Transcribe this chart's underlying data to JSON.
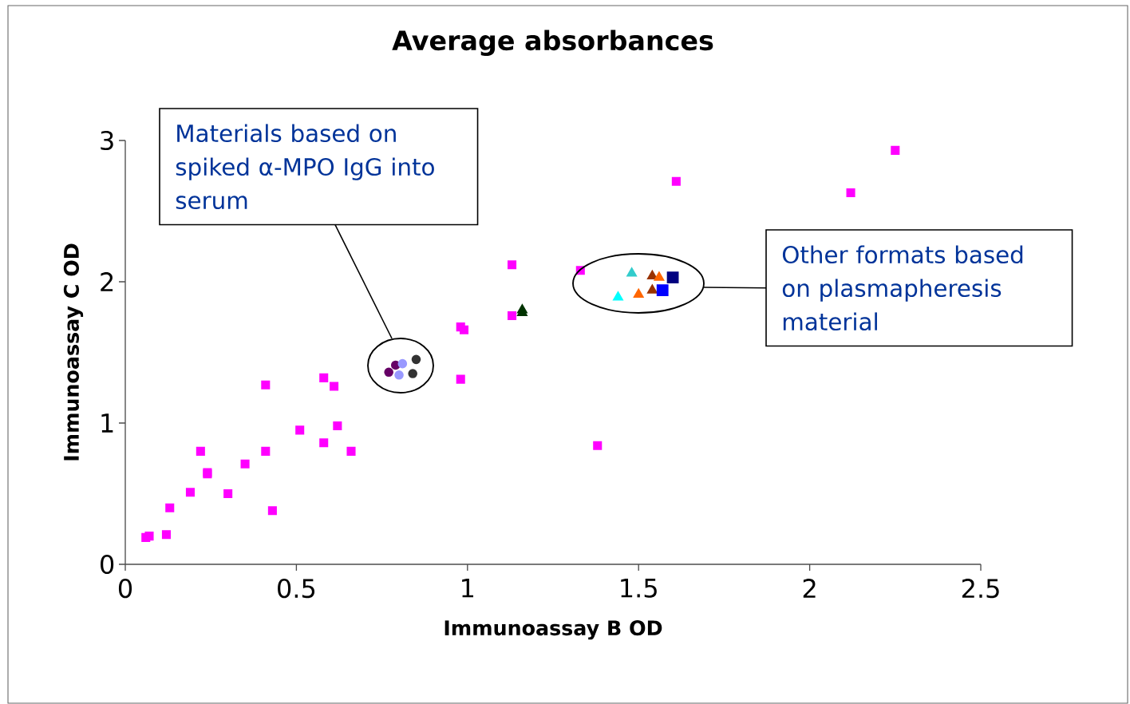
{
  "chart_data": {
    "type": "scatter",
    "title": "Average absorbances",
    "xlabel": "Immunoassay B OD",
    "ylabel": "Immunoassay C OD",
    "xlim": [
      0,
      2.5
    ],
    "ylim": [
      0,
      3
    ],
    "xticks": [
      0,
      0.5,
      1,
      1.5,
      2,
      2.5
    ],
    "yticks": [
      0,
      1,
      2,
      3
    ],
    "grid": false,
    "series": [
      {
        "color": "#ff00ff",
        "marker": "square",
        "x": [
          0.06,
          0.07,
          0.12,
          0.13,
          0.19,
          0.22,
          0.24,
          0.24,
          0.3,
          0.35,
          0.41,
          0.41,
          0.43,
          0.51,
          0.58,
          0.58,
          0.61,
          0.62,
          0.66,
          0.98,
          0.98,
          0.99,
          1.13,
          1.13,
          1.33,
          1.38,
          1.61,
          2.12,
          2.25
        ],
        "values": [
          0.19,
          0.2,
          0.21,
          0.4,
          0.51,
          0.8,
          0.64,
          0.65,
          0.5,
          0.71,
          1.27,
          0.8,
          0.38,
          0.95,
          1.32,
          0.86,
          1.26,
          0.98,
          0.8,
          1.31,
          1.68,
          1.66,
          1.76,
          2.12,
          2.08,
          0.84,
          2.71,
          2.63,
          2.93
        ]
      },
      {
        "color": "#660066",
        "marker": "circle",
        "x": [
          0.79
        ],
        "values": [
          1.41
        ]
      },
      {
        "color": "#660066",
        "marker": "circle",
        "x": [
          0.77
        ],
        "values": [
          1.36
        ]
      },
      {
        "color": "#9999ff",
        "marker": "circle",
        "x": [
          0.81
        ],
        "values": [
          1.42
        ]
      },
      {
        "color": "#9999ff",
        "marker": "circle",
        "x": [
          0.8
        ],
        "values": [
          1.34
        ]
      },
      {
        "color": "#333333",
        "marker": "circle",
        "x": [
          0.85
        ],
        "values": [
          1.45
        ]
      },
      {
        "color": "#333333",
        "marker": "circle",
        "x": [
          0.84
        ],
        "values": [
          1.35
        ]
      },
      {
        "color": "#003300",
        "marker": "triangle",
        "x": [
          1.16
        ],
        "values": [
          1.8
        ]
      },
      {
        "color": "#003300",
        "marker": "triangle",
        "x": [
          1.16
        ],
        "values": [
          1.78
        ]
      },
      {
        "color": "#33cccc",
        "marker": "triangle",
        "x": [
          1.48
        ],
        "values": [
          2.06
        ]
      },
      {
        "color": "#00ffff",
        "marker": "triangle",
        "x": [
          1.44
        ],
        "values": [
          1.89
        ]
      },
      {
        "color": "#993300",
        "marker": "triangle",
        "x": [
          1.54
        ],
        "values": [
          2.04
        ]
      },
      {
        "color": "#993300",
        "marker": "triangle",
        "x": [
          1.54
        ],
        "values": [
          1.94
        ]
      },
      {
        "color": "#ff6600",
        "marker": "triangle",
        "x": [
          1.56
        ],
        "values": [
          2.03
        ]
      },
      {
        "color": "#ff6600",
        "marker": "triangle",
        "x": [
          1.5
        ],
        "values": [
          1.91
        ]
      },
      {
        "color": "#000080",
        "marker": "square",
        "x": [
          1.6
        ],
        "values": [
          2.03
        ]
      },
      {
        "color": "#0000ff",
        "marker": "square",
        "x": [
          1.57
        ],
        "values": [
          1.94
        ]
      }
    ],
    "annotations": [
      "Materials based on spiked α-MPO IgG into serum",
      "Other formats based on plasmapheresis material"
    ]
  }
}
